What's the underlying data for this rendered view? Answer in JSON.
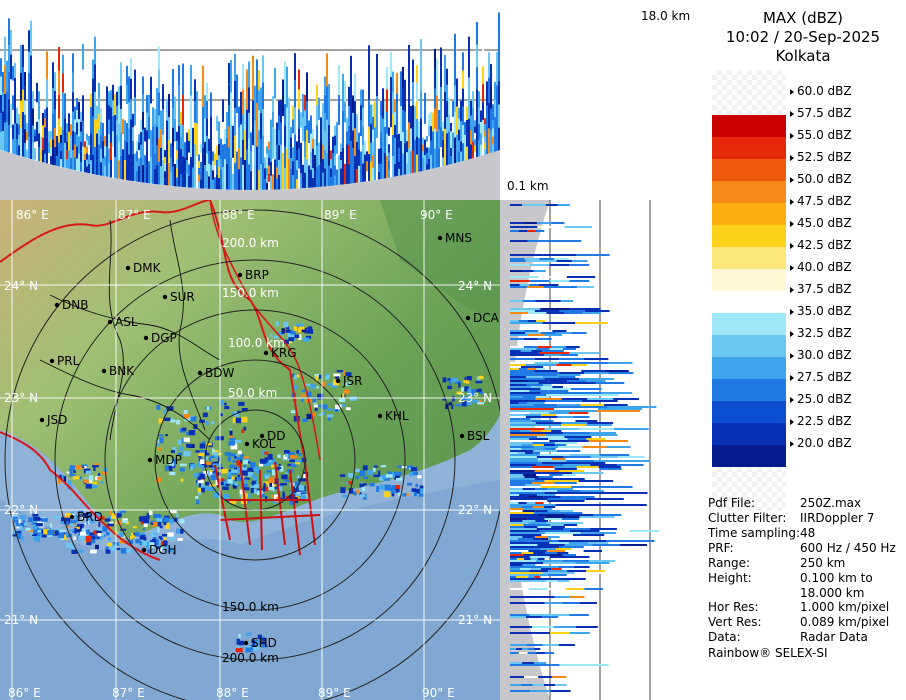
{
  "header": {
    "product": "MAX (dBZ)",
    "datetime": "10:02 / 20-Sep-2025",
    "station": "Kolkata"
  },
  "profiles": {
    "top_height_label": "18.0 km",
    "bottom_height_label": "0.1 km"
  },
  "color_scale": {
    "labels": [
      "60.0 dBZ",
      "57.5 dBZ",
      "55.0 dBZ",
      "52.5 dBZ",
      "50.0 dBZ",
      "47.5 dBZ",
      "45.0 dBZ",
      "42.5 dBZ",
      "40.0 dBZ",
      "37.5 dBZ",
      "35.0 dBZ",
      "32.5 dBZ",
      "30.0 dBZ",
      "27.5 dBZ",
      "25.0 dBZ",
      "22.5 dBZ",
      "20.0 dBZ"
    ],
    "colors": [
      "#9a0000",
      "#c80000",
      "#e42808",
      "#ef5a10",
      "#f58a18",
      "#fbb010",
      "#fcd21a",
      "#fbe878",
      "#fff9d6",
      "#ffffff",
      "#9fe8f8",
      "#6cc8f2",
      "#3ea4ec",
      "#1f7ae4",
      "#0b4fd0",
      "#0830b4",
      "#051c8c"
    ]
  },
  "map": {
    "lon_labels": [
      "86° E",
      "87° E",
      "88° E",
      "89° E",
      "90° E"
    ],
    "lat_labels": [
      "24° N",
      "23° N",
      "22° N",
      "21° N"
    ],
    "range_labels": [
      "50.0 km",
      "100.0 km",
      "150.0 km",
      "200.0 km"
    ],
    "cities": [
      {
        "name": "MNS"
      },
      {
        "name": "DMK"
      },
      {
        "name": "BRP"
      },
      {
        "name": "SUR"
      },
      {
        "name": "DNB"
      },
      {
        "name": "ASL"
      },
      {
        "name": "DGP"
      },
      {
        "name": "DCA"
      },
      {
        "name": "KRG"
      },
      {
        "name": "PRL"
      },
      {
        "name": "BNK"
      },
      {
        "name": "BDW"
      },
      {
        "name": "JSR"
      },
      {
        "name": "JSD"
      },
      {
        "name": "KHL"
      },
      {
        "name": "BSL"
      },
      {
        "name": "MDP"
      },
      {
        "name": "KOL"
      },
      {
        "name": "BRD"
      },
      {
        "name": "DGH"
      },
      {
        "name": "SHD"
      },
      {
        "name": "DD"
      }
    ]
  },
  "metadata": [
    {
      "key": "Pdf File:",
      "value": "250Z.max"
    },
    {
      "key": "Clutter Filter:",
      "value": "IIRDoppler 7"
    },
    {
      "key": "Time sampling:",
      "value": "48"
    },
    {
      "key": "PRF:",
      "value": "600 Hz / 450 Hz"
    },
    {
      "key": "Range:",
      "value": "250 km"
    },
    {
      "key": "Height:",
      "value": "0.100 km to"
    },
    {
      "key": "",
      "value": "18.000 km"
    },
    {
      "key": "Hor Res:",
      "value": "1.000 km/pixel"
    },
    {
      "key": "Vert Res:",
      "value": "0.089 km/pixel"
    },
    {
      "key": "Data:",
      "value": "Radar Data"
    }
  ],
  "footer": "Rainbow® SELEX-SI"
}
